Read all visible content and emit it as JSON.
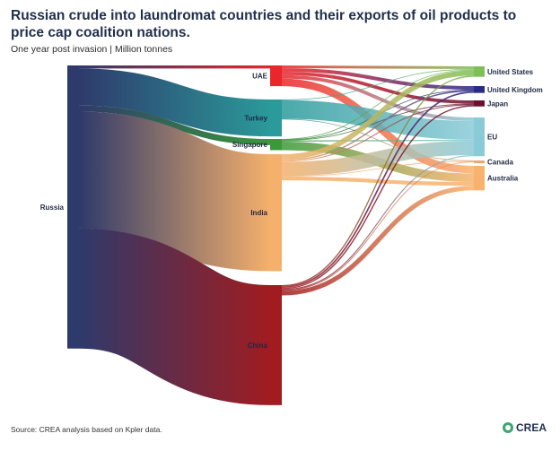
{
  "header": {
    "title": "Russian crude into laundromat countries and their exports of oil products to price cap coalition nations.",
    "subtitle": "One year post invasion | Million tonnes"
  },
  "footer": {
    "source": "Source: CREA analysis based on Kpler data.",
    "logo_text": "CREA"
  },
  "chart_data": {
    "type": "sankey",
    "unit": "Million tonnes",
    "nodes": [
      {
        "id": "Russia",
        "label": "Russia",
        "color": "#2e3a6b"
      },
      {
        "id": "UAE",
        "label": "UAE",
        "color": "#e8262b"
      },
      {
        "id": "Turkey",
        "label": "Turkey",
        "color": "#2a9a9a"
      },
      {
        "id": "Singapore",
        "label": "Singapore",
        "color": "#3a9a3a"
      },
      {
        "id": "India",
        "label": "India",
        "color": "#f5b06c"
      },
      {
        "id": "China",
        "label": "China",
        "color": "#a01c20"
      },
      {
        "id": "United States",
        "label": "United States",
        "color": "#7fbf57"
      },
      {
        "id": "United Kingdom",
        "label": "United Kingdom",
        "color": "#2b2a86"
      },
      {
        "id": "Japan",
        "label": "Japan",
        "color": "#6b1030"
      },
      {
        "id": "EU",
        "label": "EU",
        "color": "#8acbd8"
      },
      {
        "id": "Canada",
        "label": "Canada",
        "color": "#f4a66a"
      },
      {
        "id": "Australia",
        "label": "Australia",
        "color": "#f7b36e"
      }
    ],
    "links": [
      {
        "source": "Russia",
        "target": "UAE",
        "value": 2.2
      },
      {
        "source": "Russia",
        "target": "Turkey",
        "value": 26.4
      },
      {
        "source": "Russia",
        "target": "Singapore",
        "value": 4.4
      },
      {
        "source": "Russia",
        "target": "India",
        "value": 83.6
      },
      {
        "source": "Russia",
        "target": "China",
        "value": 85.8
      },
      {
        "source": "UAE",
        "target": "United States",
        "value": 1.9
      },
      {
        "source": "UAE",
        "target": "United Kingdom",
        "value": 2.6
      },
      {
        "source": "UAE",
        "target": "Japan",
        "value": 2.4
      },
      {
        "source": "UAE",
        "target": "EU",
        "value": 2.5
      },
      {
        "source": "UAE",
        "target": "Australia",
        "value": 5.4
      },
      {
        "source": "Turkey",
        "target": "United States",
        "value": 0.4
      },
      {
        "source": "Turkey",
        "target": "EU",
        "value": 13.4
      },
      {
        "source": "Turkey",
        "target": "Canada",
        "value": 0.4
      },
      {
        "source": "Singapore",
        "target": "United States",
        "value": 0.5
      },
      {
        "source": "Singapore",
        "target": "United Kingdom",
        "value": 0.3
      },
      {
        "source": "Singapore",
        "target": "Japan",
        "value": 0.3
      },
      {
        "source": "Singapore",
        "target": "EU",
        "value": 0.8
      },
      {
        "source": "Singapore",
        "target": "Australia",
        "value": 6.1
      },
      {
        "source": "India",
        "target": "United States",
        "value": 3.8
      },
      {
        "source": "India",
        "target": "United Kingdom",
        "value": 0.9
      },
      {
        "source": "India",
        "target": "Japan",
        "value": 0.7
      },
      {
        "source": "India",
        "target": "EU",
        "value": 10.2
      },
      {
        "source": "India",
        "target": "Canada",
        "value": 0.4
      },
      {
        "source": "India",
        "target": "Australia",
        "value": 2.7
      },
      {
        "source": "China",
        "target": "United States",
        "value": 0.9
      },
      {
        "source": "China",
        "target": "United Kingdom",
        "value": 1.1
      },
      {
        "source": "China",
        "target": "Japan",
        "value": 0.9
      },
      {
        "source": "China",
        "target": "EU",
        "value": 0.8
      },
      {
        "source": "China",
        "target": "Canada",
        "value": 0.4
      },
      {
        "source": "China",
        "target": "Australia",
        "value": 3.3
      }
    ]
  }
}
